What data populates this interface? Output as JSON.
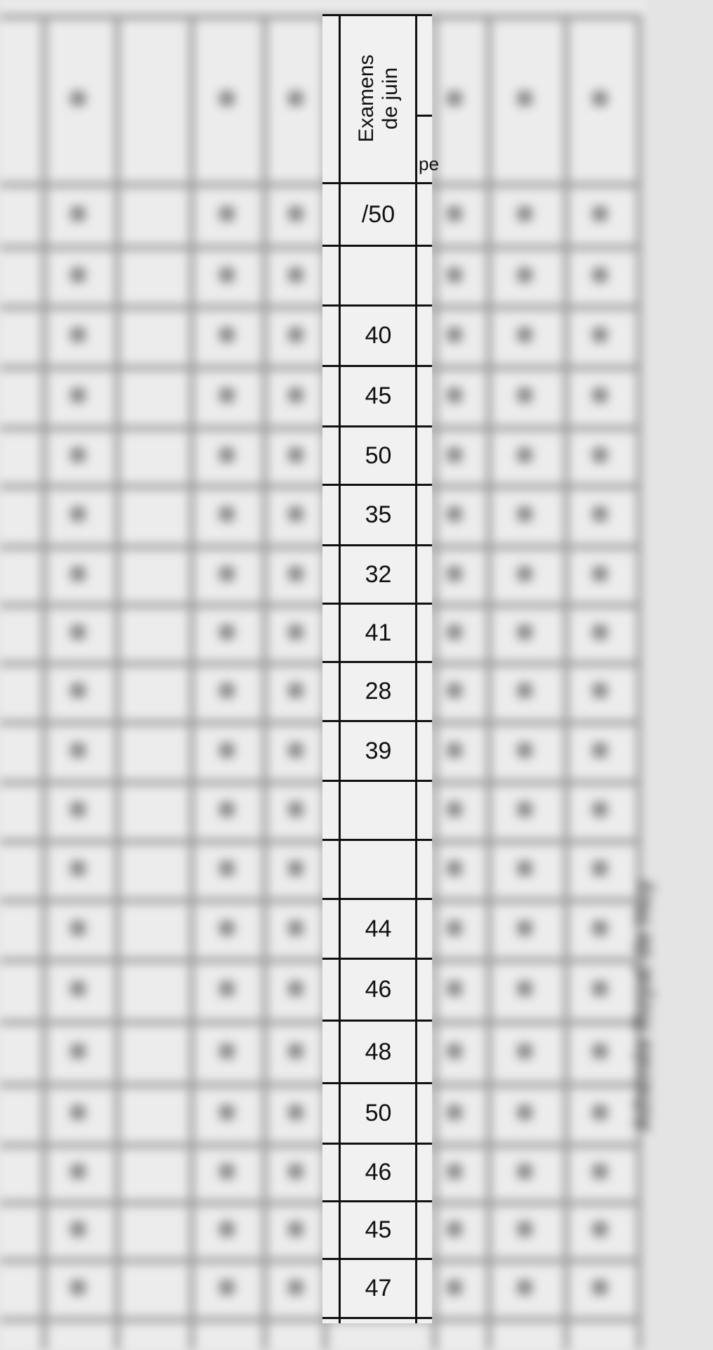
{
  "sharp_column": {
    "header": [
      "Examens",
      "de juin"
    ],
    "fragment": "pe",
    "rows": [
      "/50",
      "",
      "40",
      "45",
      "50",
      "35",
      "32",
      "41",
      "28",
      "39",
      "",
      "",
      "44",
      "46",
      "48",
      "50",
      "46",
      "45",
      "47"
    ]
  },
  "blurred_context": {
    "side_text": "Athénée Royal de Huy"
  }
}
